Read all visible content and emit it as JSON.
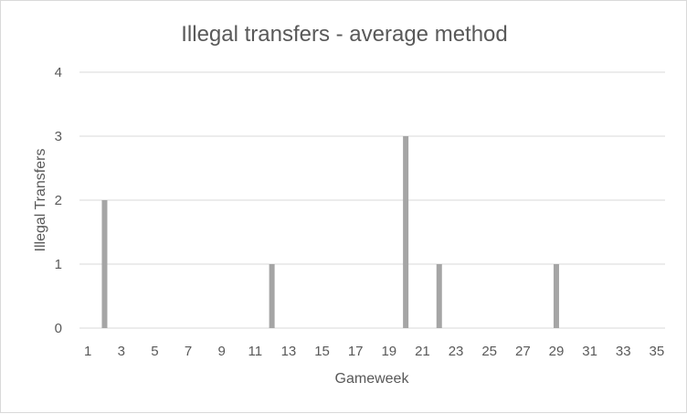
{
  "chart_data": {
    "type": "bar",
    "title": "Illegal transfers - average method",
    "xlabel": "Gameweek",
    "ylabel": "Illegal Transfers",
    "x_range": [
      1,
      35
    ],
    "x_tick_labels": [
      "1",
      "3",
      "5",
      "7",
      "9",
      "11",
      "13",
      "15",
      "17",
      "19",
      "21",
      "23",
      "25",
      "27",
      "29",
      "31",
      "33",
      "35"
    ],
    "ylim": [
      0,
      4
    ],
    "y_ticks": [
      0,
      1,
      2,
      3,
      4
    ],
    "grid": "horizontal",
    "legend": "none",
    "bar_color": "#a5a5a5",
    "grid_color": "#d9d9d9",
    "points": [
      {
        "x": 2,
        "y": 2
      },
      {
        "x": 12,
        "y": 1
      },
      {
        "x": 20,
        "y": 3
      },
      {
        "x": 22,
        "y": 1
      },
      {
        "x": 29,
        "y": 1
      }
    ]
  }
}
